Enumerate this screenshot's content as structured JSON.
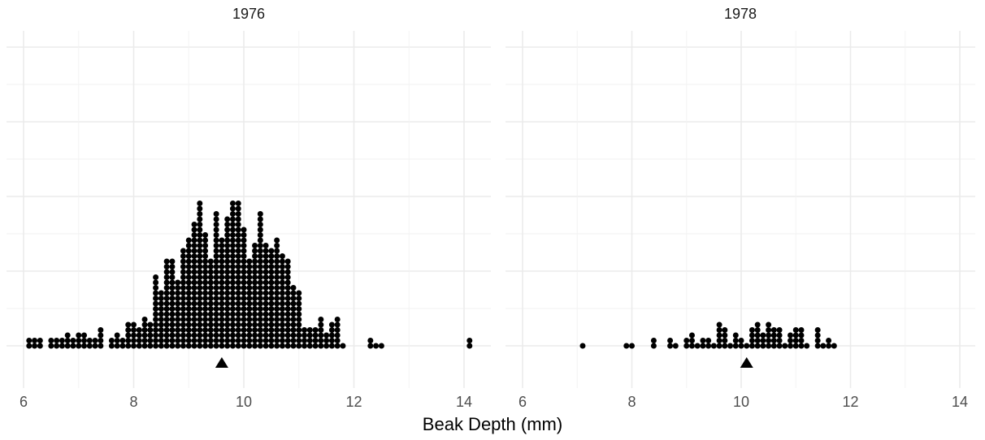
{
  "chart_data": {
    "type": "dotplot",
    "xlabel": "Beak Depth (mm)",
    "ylabel": "",
    "xlim": [
      6,
      14
    ],
    "x_ticks": [
      6,
      8,
      10,
      12,
      14
    ],
    "grid": true,
    "legend": "none",
    "colors": {
      "dots": "#000000",
      "mean_marker": "#000000",
      "grid": "#ebebeb",
      "background": "#ffffff"
    },
    "dot_bin_width": 0.1,
    "panels": [
      {
        "title": "1976",
        "mean": 9.6,
        "mean_marker": "triangle",
        "bins": [
          [
            6.1,
            2
          ],
          [
            6.2,
            2
          ],
          [
            6.3,
            2
          ],
          [
            6.5,
            2
          ],
          [
            6.6,
            2
          ],
          [
            6.7,
            2
          ],
          [
            6.8,
            3
          ],
          [
            6.9,
            2
          ],
          [
            7.0,
            3
          ],
          [
            7.1,
            3
          ],
          [
            7.2,
            2
          ],
          [
            7.3,
            2
          ],
          [
            7.4,
            4
          ],
          [
            7.6,
            2
          ],
          [
            7.7,
            3
          ],
          [
            7.8,
            2
          ],
          [
            7.9,
            5
          ],
          [
            8.0,
            5
          ],
          [
            8.1,
            4
          ],
          [
            8.2,
            6
          ],
          [
            8.3,
            5
          ],
          [
            8.4,
            14
          ],
          [
            8.5,
            11
          ],
          [
            8.6,
            17
          ],
          [
            8.7,
            17
          ],
          [
            8.8,
            13
          ],
          [
            8.9,
            19
          ],
          [
            9.0,
            21
          ],
          [
            9.1,
            24
          ],
          [
            9.2,
            28
          ],
          [
            9.3,
            22
          ],
          [
            9.4,
            17
          ],
          [
            9.5,
            26
          ],
          [
            9.6,
            21
          ],
          [
            9.7,
            25
          ],
          [
            9.8,
            28
          ],
          [
            9.9,
            28
          ],
          [
            10.0,
            23
          ],
          [
            10.1,
            17
          ],
          [
            10.2,
            20
          ],
          [
            10.3,
            26
          ],
          [
            10.4,
            20
          ],
          [
            10.5,
            19
          ],
          [
            10.6,
            21
          ],
          [
            10.7,
            18
          ],
          [
            10.8,
            17
          ],
          [
            10.9,
            12
          ],
          [
            11.0,
            11
          ],
          [
            11.1,
            4
          ],
          [
            11.2,
            4
          ],
          [
            11.3,
            4
          ],
          [
            11.4,
            6
          ],
          [
            11.5,
            3
          ],
          [
            11.6,
            5
          ],
          [
            11.7,
            6
          ],
          [
            11.8,
            1
          ],
          [
            12.3,
            2
          ],
          [
            12.4,
            1
          ],
          [
            12.5,
            1
          ],
          [
            14.1,
            2
          ]
        ]
      },
      {
        "title": "1978",
        "mean": 10.1,
        "mean_marker": "triangle",
        "bins": [
          [
            7.1,
            1
          ],
          [
            7.9,
            1
          ],
          [
            8.0,
            1
          ],
          [
            8.4,
            2
          ],
          [
            8.7,
            2
          ],
          [
            8.8,
            1
          ],
          [
            9.0,
            2
          ],
          [
            9.1,
            3
          ],
          [
            9.2,
            1
          ],
          [
            9.3,
            2
          ],
          [
            9.4,
            2
          ],
          [
            9.5,
            1
          ],
          [
            9.6,
            5
          ],
          [
            9.7,
            4
          ],
          [
            9.8,
            1
          ],
          [
            9.9,
            3
          ],
          [
            10.0,
            2
          ],
          [
            10.1,
            1
          ],
          [
            10.2,
            4
          ],
          [
            10.3,
            5
          ],
          [
            10.4,
            3
          ],
          [
            10.5,
            5
          ],
          [
            10.6,
            4
          ],
          [
            10.7,
            4
          ],
          [
            10.8,
            1
          ],
          [
            10.9,
            3
          ],
          [
            11.0,
            4
          ],
          [
            11.1,
            4
          ],
          [
            11.2,
            1
          ],
          [
            11.4,
            4
          ],
          [
            11.5,
            1
          ],
          [
            11.6,
            2
          ],
          [
            11.7,
            1
          ]
        ]
      }
    ]
  }
}
